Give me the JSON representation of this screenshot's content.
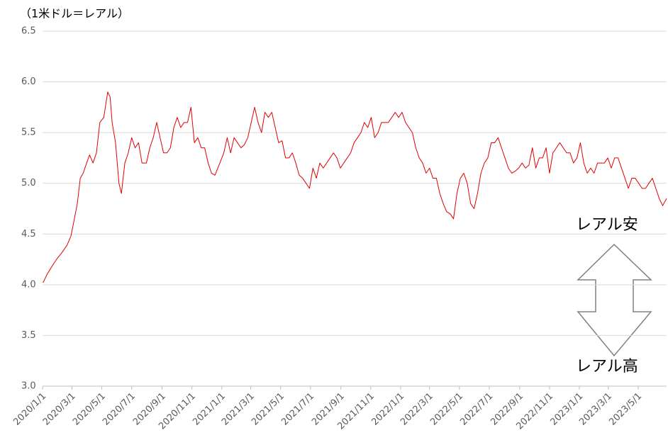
{
  "chart_data": {
    "type": "line",
    "title": "（1米ドル＝レアル）",
    "annotations": [
      "レアル安",
      "レアル高"
    ],
    "color": "#e00000",
    "grid": true,
    "x": [
      "2020-01-02",
      "2020-01-10",
      "2020-01-20",
      "2020-01-31",
      "2020-02-10",
      "2020-02-20",
      "2020-02-28",
      "2020-03-06",
      "2020-03-12",
      "2020-03-18",
      "2020-03-24",
      "2020-03-31",
      "2020-04-06",
      "2020-04-13",
      "2020-04-20",
      "2020-04-27",
      "2020-05-05",
      "2020-05-13",
      "2020-05-18",
      "2020-05-22",
      "2020-05-29",
      "2020-06-05",
      "2020-06-10",
      "2020-06-17",
      "2020-06-24",
      "2020-07-01",
      "2020-07-08",
      "2020-07-15",
      "2020-07-22",
      "2020-07-31",
      "2020-08-07",
      "2020-08-14",
      "2020-08-21",
      "2020-08-28",
      "2020-09-04",
      "2020-09-11",
      "2020-09-18",
      "2020-09-25",
      "2020-10-02",
      "2020-10-09",
      "2020-10-16",
      "2020-10-23",
      "2020-10-30",
      "2020-11-06",
      "2020-11-13",
      "2020-11-20",
      "2020-11-27",
      "2020-12-04",
      "2020-12-11",
      "2020-12-18",
      "2020-12-28",
      "2021-01-05",
      "2021-01-12",
      "2021-01-19",
      "2021-01-26",
      "2021-02-02",
      "2021-02-09",
      "2021-02-16",
      "2021-02-23",
      "2021-03-02",
      "2021-03-09",
      "2021-03-16",
      "2021-03-23",
      "2021-03-30",
      "2021-04-06",
      "2021-04-13",
      "2021-04-20",
      "2021-04-27",
      "2021-05-04",
      "2021-05-11",
      "2021-05-18",
      "2021-05-25",
      "2021-06-01",
      "2021-06-08",
      "2021-06-15",
      "2021-06-22",
      "2021-06-29",
      "2021-07-06",
      "2021-07-13",
      "2021-07-20",
      "2021-07-27",
      "2021-08-03",
      "2021-08-10",
      "2021-08-17",
      "2021-08-24",
      "2021-08-31",
      "2021-09-07",
      "2021-09-14",
      "2021-09-21",
      "2021-09-28",
      "2021-10-05",
      "2021-10-12",
      "2021-10-19",
      "2021-10-26",
      "2021-11-02",
      "2021-11-09",
      "2021-11-16",
      "2021-11-23",
      "2021-11-30",
      "2021-12-07",
      "2021-12-14",
      "2021-12-21",
      "2021-12-28",
      "2022-01-04",
      "2022-01-11",
      "2022-01-18",
      "2022-01-25",
      "2022-02-01",
      "2022-02-08",
      "2022-02-15",
      "2022-02-22",
      "2022-03-01",
      "2022-03-08",
      "2022-03-15",
      "2022-03-22",
      "2022-03-29",
      "2022-04-05",
      "2022-04-12",
      "2022-04-19",
      "2022-04-26",
      "2022-05-03",
      "2022-05-10",
      "2022-05-17",
      "2022-05-24",
      "2022-05-31",
      "2022-06-07",
      "2022-06-14",
      "2022-06-21",
      "2022-06-28",
      "2022-07-05",
      "2022-07-12",
      "2022-07-19",
      "2022-07-26",
      "2022-08-02",
      "2022-08-09",
      "2022-08-16",
      "2022-08-23",
      "2022-08-30",
      "2022-09-06",
      "2022-09-13",
      "2022-09-20",
      "2022-09-27",
      "2022-10-04",
      "2022-10-11",
      "2022-10-18",
      "2022-10-25",
      "2022-11-01",
      "2022-11-08",
      "2022-11-15",
      "2022-11-22",
      "2022-11-29",
      "2022-12-06",
      "2022-12-13",
      "2022-12-20",
      "2022-12-27",
      "2023-01-03",
      "2023-01-10",
      "2023-01-17",
      "2023-01-24",
      "2023-01-31",
      "2023-02-07",
      "2023-02-14",
      "2023-02-21",
      "2023-02-28",
      "2023-03-07",
      "2023-03-14",
      "2023-03-21",
      "2023-03-28",
      "2023-04-04",
      "2023-04-11",
      "2023-04-18",
      "2023-04-25",
      "2023-05-02",
      "2023-05-09",
      "2023-05-16",
      "2023-05-23",
      "2023-05-30",
      "2023-06-06",
      "2023-06-13",
      "2023-06-20",
      "2023-06-28"
    ],
    "values": [
      4.02,
      4.1,
      4.18,
      4.26,
      4.32,
      4.39,
      4.48,
      4.65,
      4.8,
      5.05,
      5.1,
      5.2,
      5.28,
      5.2,
      5.3,
      5.6,
      5.65,
      5.9,
      5.85,
      5.6,
      5.4,
      5.0,
      4.9,
      5.2,
      5.3,
      5.45,
      5.35,
      5.4,
      5.2,
      5.2,
      5.35,
      5.45,
      5.6,
      5.45,
      5.3,
      5.3,
      5.35,
      5.55,
      5.65,
      5.55,
      5.6,
      5.6,
      5.75,
      5.4,
      5.45,
      5.35,
      5.35,
      5.2,
      5.1,
      5.08,
      5.2,
      5.3,
      5.45,
      5.3,
      5.45,
      5.4,
      5.35,
      5.38,
      5.45,
      5.6,
      5.75,
      5.6,
      5.5,
      5.7,
      5.65,
      5.7,
      5.55,
      5.4,
      5.42,
      5.25,
      5.25,
      5.3,
      5.2,
      5.08,
      5.05,
      5.0,
      4.95,
      5.15,
      5.05,
      5.2,
      5.15,
      5.2,
      5.25,
      5.3,
      5.25,
      5.15,
      5.2,
      5.25,
      5.3,
      5.4,
      5.45,
      5.5,
      5.6,
      5.55,
      5.65,
      5.45,
      5.5,
      5.6,
      5.6,
      5.6,
      5.65,
      5.7,
      5.65,
      5.7,
      5.6,
      5.55,
      5.5,
      5.35,
      5.25,
      5.2,
      5.1,
      5.15,
      5.05,
      5.05,
      4.9,
      4.8,
      4.72,
      4.7,
      4.65,
      4.9,
      5.05,
      5.1,
      5.0,
      4.8,
      4.75,
      4.9,
      5.1,
      5.2,
      5.25,
      5.4,
      5.4,
      5.45,
      5.35,
      5.25,
      5.15,
      5.1,
      5.12,
      5.15,
      5.2,
      5.15,
      5.18,
      5.35,
      5.15,
      5.25,
      5.25,
      5.35,
      5.1,
      5.3,
      5.35,
      5.4,
      5.35,
      5.3,
      5.3,
      5.2,
      5.25,
      5.4,
      5.2,
      5.1,
      5.15,
      5.1,
      5.2,
      5.2,
      5.2,
      5.25,
      5.15,
      5.25,
      5.25,
      5.15,
      5.05,
      4.95,
      5.05,
      5.05,
      5.0,
      4.95,
      4.95,
      5.0,
      5.05,
      4.95,
      4.85,
      4.78,
      4.85
    ],
    "xlim": [
      "2020-01-01",
      "2023-06-28"
    ],
    "xticks": [
      {
        "value": "2020-01-01",
        "label": "2020/1/1"
      },
      {
        "value": "2020-03-01",
        "label": "2020/3/1"
      },
      {
        "value": "2020-05-01",
        "label": "2020/5/1"
      },
      {
        "value": "2020-07-01",
        "label": "2020/7/1"
      },
      {
        "value": "2020-09-01",
        "label": "2020/9/1"
      },
      {
        "value": "2020-11-01",
        "label": "2020/11/1"
      },
      {
        "value": "2021-01-01",
        "label": "2021/1/1"
      },
      {
        "value": "2021-03-01",
        "label": "2021/3/1"
      },
      {
        "value": "2021-05-01",
        "label": "2021/5/1"
      },
      {
        "value": "2021-07-01",
        "label": "2021/7/1"
      },
      {
        "value": "2021-09-01",
        "label": "2021/9/1"
      },
      {
        "value": "2021-11-01",
        "label": "2021/11/1"
      },
      {
        "value": "2022-01-01",
        "label": "2022/1/1"
      },
      {
        "value": "2022-03-01",
        "label": "2022/3/1"
      },
      {
        "value": "2022-05-01",
        "label": "2022/5/1"
      },
      {
        "value": "2022-07-01",
        "label": "2022/7/1"
      },
      {
        "value": "2022-09-01",
        "label": "2022/9/1"
      },
      {
        "value": "2022-11-01",
        "label": "2022/11/1"
      },
      {
        "value": "2023-01-01",
        "label": "2023/1/1"
      },
      {
        "value": "2023-03-01",
        "label": "2023/3/1"
      },
      {
        "value": "2023-05-01",
        "label": "2023/5/1"
      }
    ],
    "ylim": [
      3,
      6.5
    ],
    "yticks": [
      {
        "value": 3,
        "label": "3.0"
      },
      3.5,
      {
        "value": 4,
        "label": "4.0"
      },
      4.5,
      {
        "value": 5,
        "label": "5.0"
      },
      5.5,
      {
        "value": 6,
        "label": "6.0"
      },
      6.5
    ]
  }
}
